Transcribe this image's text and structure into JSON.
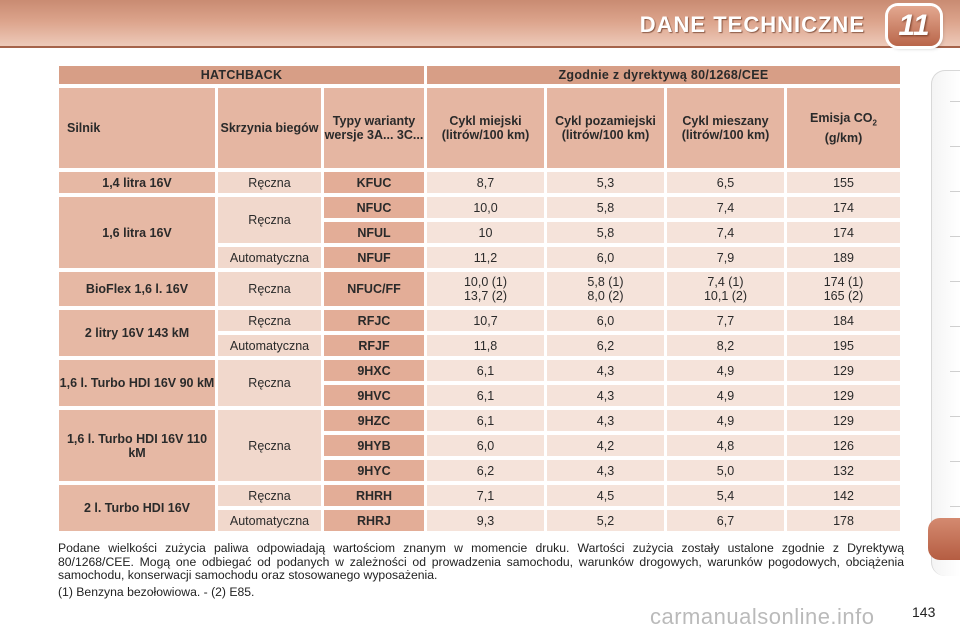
{
  "header": {
    "title": "DANE TECHNICZNE",
    "chapter": "11"
  },
  "table": {
    "group_left": "HATCHBACK",
    "group_right": "Zgodnie z dyrektywą 80/1268/CEE",
    "columns": {
      "engine": "Silnik",
      "gearbox": "Skrzynia biegów",
      "versions": "Typy warianty wersje 3A... 3C...",
      "urban": "Cykl miejski (litrów/100 km)",
      "extra_urban": "Cykl pozamiejski (litrów/100 km)",
      "combined": "Cykl mieszany (litrów/100 km)",
      "emission": "Emisja CO",
      "emission_sub": "2",
      "emission_unit": "(g/km)"
    },
    "rows": [
      {
        "engine": "1,4 litra 16V",
        "gearbox": "Ręczna",
        "code": "KFUC",
        "urban": "8,7",
        "extra": "5,3",
        "combined": "6,5",
        "co2": "155"
      },
      {
        "engine": "1,6 litra 16V",
        "gearbox": "Ręczna",
        "code": "NFUC",
        "urban": "10,0",
        "extra": "5,8",
        "combined": "7,4",
        "co2": "174"
      },
      {
        "code": "NFUL",
        "urban": "10",
        "extra": "5,8",
        "combined": "7,4",
        "co2": "174"
      },
      {
        "gearbox": "Automatyczna",
        "code": "NFUF",
        "urban": "11,2",
        "extra": "6,0",
        "combined": "7,9",
        "co2": "189"
      },
      {
        "engine": "BioFlex 1,6 l. 16V",
        "gearbox": "Ręczna",
        "code": "NFUC/FF",
        "urban": "10,0 (1)",
        "urban2": "13,7 (2)",
        "extra": "5,8 (1)",
        "extra2": "8,0 (2)",
        "combined": "7,4 (1)",
        "combined2": "10,1 (2)",
        "co2": "174 (1)",
        "co22": "165 (2)"
      },
      {
        "engine": "2 litry 16V 143 kM",
        "gearbox": "Ręczna",
        "code": "RFJC",
        "urban": "10,7",
        "extra": "6,0",
        "combined": "7,7",
        "co2": "184"
      },
      {
        "gearbox": "Automatyczna",
        "code": "RFJF",
        "urban": "11,8",
        "extra": "6,2",
        "combined": "8,2",
        "co2": "195"
      },
      {
        "engine": "1,6 l. Turbo HDI 16V 90 kM",
        "gearbox": "Ręczna",
        "code": "9HXC",
        "urban": "6,1",
        "extra": "4,3",
        "combined": "4,9",
        "co2": "129"
      },
      {
        "code": "9HVC",
        "urban": "6,1",
        "extra": "4,3",
        "combined": "4,9",
        "co2": "129"
      },
      {
        "engine": "1,6 l. Turbo HDI 16V 110 kM",
        "gearbox": "Ręczna",
        "code": "9HZC",
        "urban": "6,1",
        "extra": "4,3",
        "combined": "4,9",
        "co2": "129"
      },
      {
        "code": "9HYB",
        "urban": "6,0",
        "extra": "4,2",
        "combined": "4,8",
        "co2": "126"
      },
      {
        "code": "9HYC",
        "urban": "6,2",
        "extra": "4,3",
        "combined": "5,0",
        "co2": "132"
      },
      {
        "engine": "2 l. Turbo HDI 16V",
        "gearbox": "Ręczna",
        "code": "RHRH",
        "urban": "7,1",
        "extra": "4,5",
        "combined": "5,4",
        "co2": "142"
      },
      {
        "gearbox": "Automatyczna",
        "code": "RHRJ",
        "urban": "9,3",
        "extra": "5,2",
        "combined": "6,7",
        "co2": "178"
      }
    ]
  },
  "notes": {
    "paragraph": "Podane wielkości zużycia paliwa odpowiadają wartościom znanym w momencie druku. Wartości zużycia zostały ustalone zgodnie z Dyrektywą 80/1268/CEE. Mogą one odbiegać od podanych w zależności od prowadzenia samochodu, warunków drogowych, warunków pogodowych, obciążenia samochodu, konserwacji samochodu oraz stosowanego wyposażenia.",
    "fuel": "(1) Benzyna bezołowiowa. - (2) E85."
  },
  "page_number": "143",
  "watermark": "carmanualsonline.info"
}
